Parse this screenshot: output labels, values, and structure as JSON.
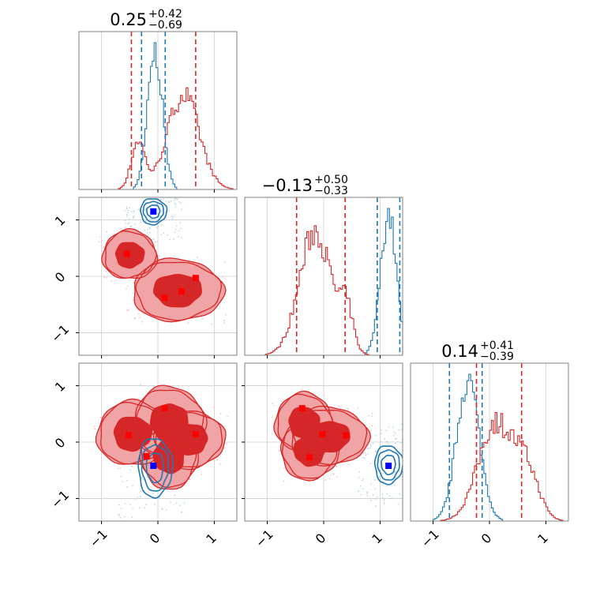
{
  "chart_data": {
    "type": "corner",
    "parameters": 3,
    "colors": {
      "model_a": "#1f77b4",
      "model_b": "#d62728",
      "marker_a": "#0000ff",
      "marker_b": "#ff0000",
      "fill_b_outer": "#f1a4a5",
      "fill_b_inner": "#d62728"
    },
    "ticks": [
      "−1",
      "0",
      "1"
    ],
    "tick_values": [
      -1,
      0,
      1
    ],
    "axis_range": [
      -1.4,
      1.4
    ],
    "grid": true,
    "diagonal": [
      {
        "param": 0,
        "title": {
          "value": "0.25",
          "upper": "+0.42",
          "lower": "−0.69"
        },
        "model_a": {
          "center": -0.05,
          "width": 0.13,
          "quantiles": [
            -0.29,
            0.13
          ]
        },
        "model_b": {
          "peaks": [
            [
              -0.35,
              0.12,
              0.35
            ],
            [
              0.45,
              0.28,
              0.7
            ]
          ],
          "quantiles": [
            -0.47,
            0.67
          ]
        }
      },
      {
        "param": 1,
        "title": {
          "value": "−0.13",
          "upper": "+0.50",
          "lower": "−0.33"
        },
        "model_a": {
          "center": 1.15,
          "width": 0.14,
          "quantiles": [
            0.95,
            1.35
          ]
        },
        "model_b": {
          "peaks": [
            [
              -0.15,
              0.28,
              0.9
            ],
            [
              0.4,
              0.12,
              0.3
            ]
          ],
          "quantiles": [
            -0.48,
            0.38
          ]
        }
      },
      {
        "param": 2,
        "title": {
          "value": "0.14",
          "upper": "+0.41",
          "lower": "−0.39"
        },
        "model_a": {
          "center": -0.38,
          "width": 0.2,
          "quantiles": [
            -0.71,
            -0.13
          ]
        },
        "model_b": {
          "peaks": [
            [
              0.1,
              0.3,
              0.7
            ],
            [
              0.65,
              0.22,
              0.35
            ]
          ],
          "quantiles": [
            -0.23,
            0.57
          ]
        }
      }
    ],
    "off_diagonal": [
      {
        "row": 1,
        "col": 0,
        "model_a_markers": [
          [
            -0.08,
            1.15
          ]
        ],
        "model_b_markers": [
          [
            -0.55,
            0.4
          ],
          [
            0.12,
            -0.38
          ],
          [
            0.42,
            -0.27
          ],
          [
            0.67,
            -0.03
          ]
        ],
        "model_a_center": [
          -0.08,
          1.15
        ],
        "model_a_size": [
          0.42,
          0.42
        ],
        "model_b_blobs": [
          [
            -0.5,
            0.38,
            0.42,
            0.38
          ],
          [
            0.35,
            -0.25,
            0.7,
            0.48
          ]
        ]
      },
      {
        "row": 2,
        "col": 0,
        "model_a_markers": [
          [
            -0.08,
            -0.42
          ]
        ],
        "model_b_markers": [
          [
            -0.52,
            0.12
          ],
          [
            0.12,
            0.6
          ],
          [
            0.67,
            0.14
          ],
          [
            -0.2,
            -0.25
          ]
        ],
        "model_a_center": [
          -0.05,
          -0.45
        ],
        "model_a_size": [
          0.55,
          0.95
        ],
        "model_b_blobs": [
          [
            -0.45,
            0.15,
            0.55,
            0.5
          ],
          [
            0.2,
            0.35,
            0.55,
            0.55
          ],
          [
            0.55,
            0.05,
            0.55,
            0.45
          ],
          [
            0.2,
            -0.25,
            0.45,
            0.5
          ]
        ]
      },
      {
        "row": 2,
        "col": 1,
        "model_a_markers": [
          [
            1.15,
            -0.42
          ]
        ],
        "model_b_markers": [
          [
            -0.38,
            0.6
          ],
          [
            -0.02,
            0.14
          ],
          [
            0.4,
            0.12
          ],
          [
            -0.25,
            -0.27
          ]
        ],
        "model_a_center": [
          1.15,
          -0.4
        ],
        "model_a_size": [
          0.45,
          0.62
        ],
        "model_b_blobs": [
          [
            -0.35,
            0.35,
            0.45,
            0.45
          ],
          [
            0.1,
            0.1,
            0.6,
            0.45
          ],
          [
            -0.25,
            -0.15,
            0.45,
            0.45
          ]
        ]
      }
    ]
  }
}
